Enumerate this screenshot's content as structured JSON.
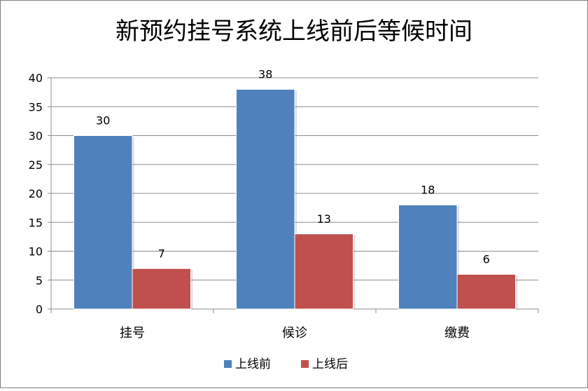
{
  "chart_data": {
    "type": "bar",
    "title": "新预约挂号系统上线前后等候时间",
    "categories": [
      "挂号",
      "候诊",
      "缴费"
    ],
    "series": [
      {
        "name": "上线前",
        "values": [
          30,
          38,
          18
        ],
        "color": "#4f81bd"
      },
      {
        "name": "上线后",
        "values": [
          7,
          13,
          6
        ],
        "color": "#c0504d"
      }
    ],
    "y_ticks": [
      "0",
      "5",
      "10",
      "15",
      "20",
      "25",
      "30",
      "35",
      "40"
    ],
    "ylim": [
      0,
      40
    ],
    "grid": true,
    "legend": "bottom"
  }
}
